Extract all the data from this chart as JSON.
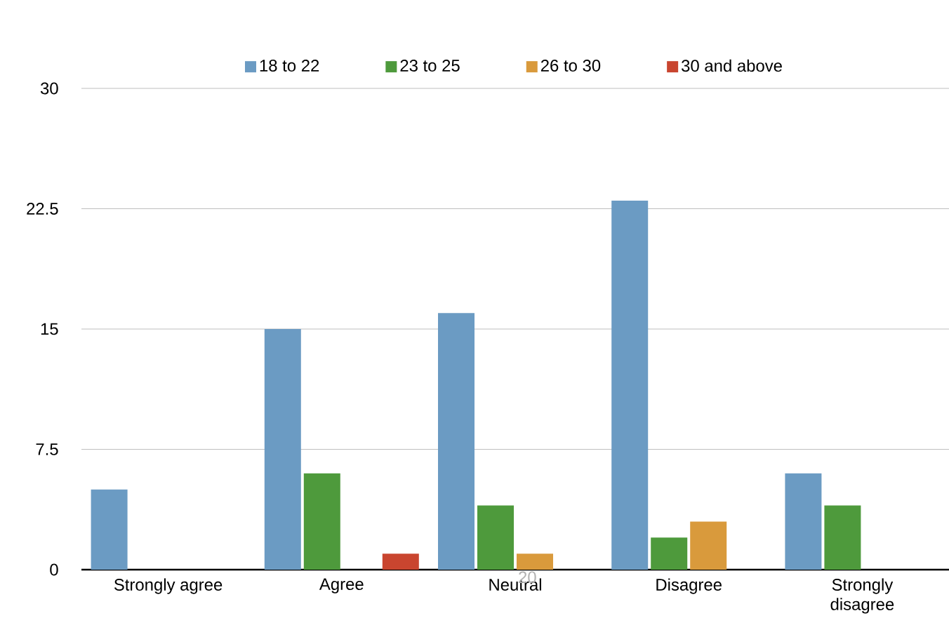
{
  "chart_data": {
    "type": "bar",
    "categories": [
      "Strongly agree",
      "Agree",
      "Neutral",
      "Disagree",
      "Strongly disagree"
    ],
    "series": [
      {
        "name": "18 to 22",
        "color": "#6b9bc3",
        "values": [
          5,
          15,
          16,
          23,
          6
        ]
      },
      {
        "name": "23 to 25",
        "color": "#4e9a3c",
        "values": [
          0,
          6,
          4,
          2,
          4
        ]
      },
      {
        "name": "26 to 30",
        "color": "#d99a3c",
        "values": [
          0,
          0,
          1,
          3,
          0
        ]
      },
      {
        "name": "30 and above",
        "color": "#c9452f",
        "values": [
          0,
          1,
          0,
          0,
          0
        ]
      }
    ],
    "ylim": [
      0,
      30
    ],
    "yticks": [
      0,
      7.5,
      15,
      22.5,
      30
    ],
    "grid": "y",
    "legend": "top",
    "annotations": [
      "20"
    ]
  }
}
